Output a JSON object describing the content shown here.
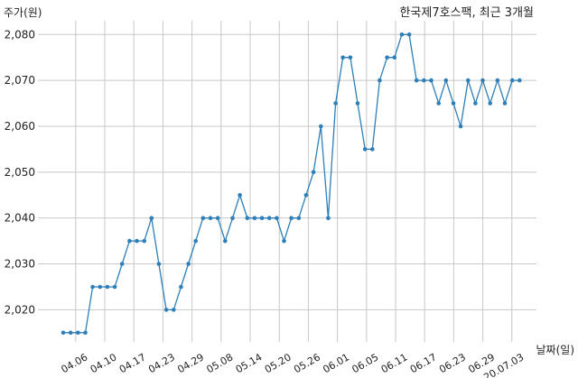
{
  "chart_data": {
    "type": "line",
    "title": "한국제7호스팩, 최근 3개월",
    "ylabel": "주가(원)",
    "xlabel": "날짜(일)",
    "ylim": [
      2013,
      2083
    ],
    "yticks": [
      2020,
      2030,
      2040,
      2050,
      2060,
      2070,
      2080
    ],
    "ytick_labels": [
      "2,020",
      "2,030",
      "2,040",
      "2,050",
      "2,060",
      "2,070",
      "2,080"
    ],
    "xtick_labels": [
      "04.06",
      "04.10",
      "04.17",
      "04.23",
      "04.29",
      "05.08",
      "05.14",
      "05.20",
      "05.26",
      "06.01",
      "06.05",
      "06.11",
      "06.17",
      "06.23",
      "06.29",
      "20.07.03"
    ],
    "grid": true,
    "color": "#2e7fb8",
    "series": [
      {
        "values": [
          2015,
          2015,
          2015,
          2015,
          2025,
          2025,
          2025,
          2025,
          2030,
          2035,
          2035,
          2035,
          2040,
          2030,
          2020,
          2020,
          2025,
          2030,
          2035,
          2040,
          2040,
          2040,
          2035,
          2040,
          2045,
          2040,
          2040,
          2040,
          2040,
          2040,
          2035,
          2040,
          2040,
          2045,
          2050,
          2060,
          2040,
          2065,
          2075,
          2075,
          2065,
          2055,
          2055,
          2070,
          2075,
          2075,
          2080,
          2080,
          2070,
          2070,
          2070,
          2065,
          2070,
          2065,
          2060,
          2070,
          2065,
          2070,
          2065,
          2070,
          2065,
          2070,
          2070
        ]
      }
    ]
  }
}
